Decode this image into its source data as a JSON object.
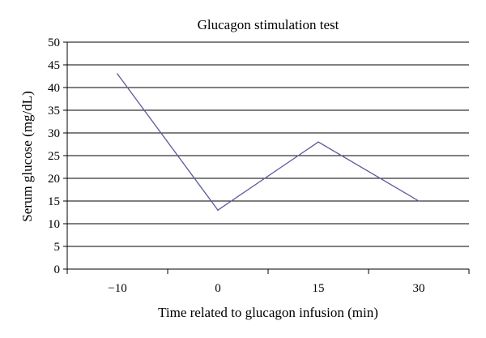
{
  "chart_data": {
    "type": "line",
    "title": "Glucagon stimulation test",
    "xlabel": "Time related to glucagon infusion (min)",
    "ylabel": "Serum glucose (mg/dL)",
    "categories": [
      "−10",
      "0",
      "15",
      "30"
    ],
    "series": [
      {
        "values": [
          43,
          13,
          28,
          15
        ],
        "color": "#5b5b9b"
      }
    ],
    "ylim": [
      0,
      50
    ],
    "yticks": [
      0,
      5,
      10,
      15,
      20,
      25,
      30,
      35,
      40,
      45,
      50
    ],
    "grid": true,
    "legend": "none"
  }
}
